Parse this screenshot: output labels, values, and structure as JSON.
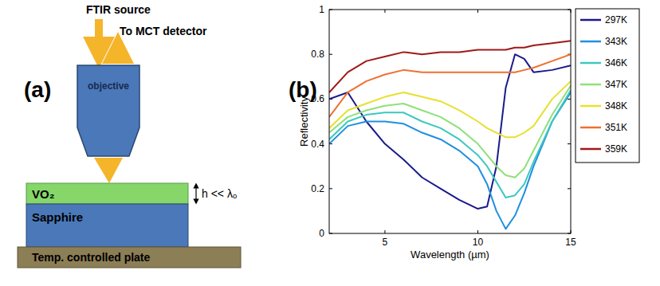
{
  "chart_data": {
    "type": "line",
    "title": "(b)",
    "x_label": "Wavelength (µm)",
    "y_label": "Reflectivity",
    "x": [
      2,
      3,
      4,
      5,
      6,
      7,
      8,
      9,
      10,
      10.5,
      11,
      11.5,
      12,
      12.5,
      13,
      14,
      15
    ],
    "xlim": [
      2,
      15
    ],
    "ylim": [
      0,
      1
    ],
    "xticks": [
      5,
      10,
      15
    ],
    "yticks": [
      0,
      0.2,
      0.4,
      0.6,
      0.8,
      1
    ],
    "grid": false,
    "legend": "right",
    "series": [
      {
        "name": "297K",
        "color": "#1a1a8c",
        "values": [
          0.6,
          0.63,
          0.5,
          0.4,
          0.33,
          0.25,
          0.2,
          0.15,
          0.11,
          0.12,
          0.3,
          0.65,
          0.8,
          0.78,
          0.72,
          0.73,
          0.75
        ]
      },
      {
        "name": "343K",
        "color": "#1f8fe0",
        "values": [
          0.4,
          0.48,
          0.5,
          0.5,
          0.49,
          0.45,
          0.42,
          0.37,
          0.3,
          0.22,
          0.1,
          0.02,
          0.08,
          0.18,
          0.3,
          0.5,
          0.63
        ]
      },
      {
        "name": "346K",
        "color": "#3cc8c0",
        "values": [
          0.42,
          0.5,
          0.53,
          0.54,
          0.54,
          0.5,
          0.47,
          0.42,
          0.35,
          0.3,
          0.23,
          0.16,
          0.17,
          0.22,
          0.32,
          0.5,
          0.64
        ]
      },
      {
        "name": "347K",
        "color": "#8ee07a",
        "values": [
          0.45,
          0.52,
          0.55,
          0.57,
          0.58,
          0.55,
          0.52,
          0.47,
          0.4,
          0.35,
          0.3,
          0.26,
          0.25,
          0.29,
          0.37,
          0.53,
          0.66
        ]
      },
      {
        "name": "348K",
        "color": "#e8e030",
        "values": [
          0.47,
          0.55,
          0.58,
          0.61,
          0.63,
          0.61,
          0.59,
          0.55,
          0.5,
          0.47,
          0.45,
          0.43,
          0.43,
          0.45,
          0.48,
          0.6,
          0.68
        ]
      },
      {
        "name": "351K",
        "color": "#f07030",
        "values": [
          0.52,
          0.63,
          0.68,
          0.71,
          0.73,
          0.72,
          0.72,
          0.72,
          0.72,
          0.72,
          0.72,
          0.72,
          0.72,
          0.73,
          0.74,
          0.77,
          0.8
        ]
      },
      {
        "name": "359K",
        "color": "#a01818",
        "values": [
          0.63,
          0.72,
          0.77,
          0.79,
          0.81,
          0.8,
          0.81,
          0.81,
          0.82,
          0.82,
          0.82,
          0.82,
          0.83,
          0.83,
          0.84,
          0.85,
          0.86
        ]
      }
    ]
  },
  "diagram": {
    "label": "(a)",
    "source": "FTIR source",
    "detector": "To MCT detector",
    "objective": "objective",
    "film": "VO₂",
    "thickness": "h << λₒ",
    "substrate": "Sapphire",
    "plate": "Temp. controlled plate"
  }
}
